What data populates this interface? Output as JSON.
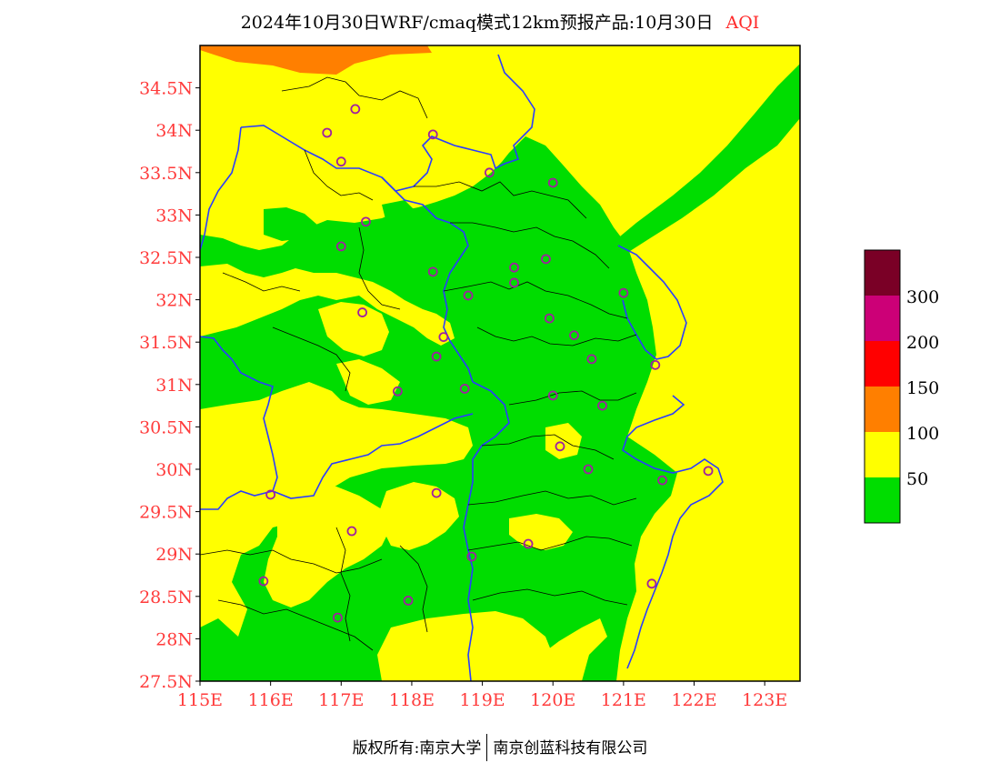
{
  "title": {
    "main": "2024年10月30日WRF/cmaq模式12km预报产品:10月30日",
    "variable": "AQI"
  },
  "footer": {
    "copyright": "版权所有:南京大学",
    "partner": "南京创蓝科技有限公司"
  },
  "axes": {
    "lat_ticks": [
      "34.5N",
      "34N",
      "33.5N",
      "33N",
      "32.5N",
      "32N",
      "31.5N",
      "31N",
      "30.5N",
      "30N",
      "29.5N",
      "29N",
      "28.5N",
      "28N",
      "27.5N"
    ],
    "lon_ticks": [
      "115E",
      "116E",
      "117E",
      "118E",
      "119E",
      "120E",
      "121E",
      "122E",
      "123E"
    ],
    "lat_range": [
      27.5,
      35.0
    ],
    "lon_range": [
      115.0,
      123.5
    ],
    "label_color": "#ff3b3b"
  },
  "legend": {
    "labels": [
      "300",
      "200",
      "150",
      "100",
      "50"
    ],
    "colors": [
      "#00dd00",
      "#ffff00",
      "#ff7f00",
      "#ff0000",
      "#cc0077",
      "#7a0026"
    ]
  },
  "colors": {
    "good": "#00dd00",
    "moderate": "#ffff00",
    "sensitive": "#ff7f00",
    "province_border": "#2a3cff",
    "city_border": "#000000",
    "station_marker": "#a020a0"
  },
  "stations": [
    {
      "lon": 117.2,
      "lat": 34.25
    },
    {
      "lon": 116.8,
      "lat": 33.97
    },
    {
      "lon": 117.0,
      "lat": 33.63
    },
    {
      "lon": 118.3,
      "lat": 33.95
    },
    {
      "lon": 119.1,
      "lat": 33.5
    },
    {
      "lon": 120.0,
      "lat": 33.38
    },
    {
      "lon": 117.35,
      "lat": 32.92
    },
    {
      "lon": 117.0,
      "lat": 32.63
    },
    {
      "lon": 118.3,
      "lat": 32.33
    },
    {
      "lon": 119.9,
      "lat": 32.48
    },
    {
      "lon": 119.45,
      "lat": 32.38
    },
    {
      "lon": 119.45,
      "lat": 32.2
    },
    {
      "lon": 118.8,
      "lat": 32.05
    },
    {
      "lon": 121.0,
      "lat": 32.08
    },
    {
      "lon": 117.3,
      "lat": 31.85
    },
    {
      "lon": 119.95,
      "lat": 31.78
    },
    {
      "lon": 118.45,
      "lat": 31.56
    },
    {
      "lon": 118.35,
      "lat": 31.33
    },
    {
      "lon": 120.3,
      "lat": 31.58
    },
    {
      "lon": 120.55,
      "lat": 31.3
    },
    {
      "lon": 121.45,
      "lat": 31.23
    },
    {
      "lon": 117.8,
      "lat": 30.92
    },
    {
      "lon": 118.75,
      "lat": 30.95
    },
    {
      "lon": 120.0,
      "lat": 30.87
    },
    {
      "lon": 120.7,
      "lat": 30.75
    },
    {
      "lon": 120.1,
      "lat": 30.27
    },
    {
      "lon": 120.5,
      "lat": 30.0
    },
    {
      "lon": 121.55,
      "lat": 29.87
    },
    {
      "lon": 122.2,
      "lat": 29.98
    },
    {
      "lon": 116.0,
      "lat": 29.7
    },
    {
      "lon": 118.35,
      "lat": 29.72
    },
    {
      "lon": 117.15,
      "lat": 29.27
    },
    {
      "lon": 119.65,
      "lat": 29.12
    },
    {
      "lon": 118.85,
      "lat": 28.97
    },
    {
      "lon": 115.9,
      "lat": 28.68
    },
    {
      "lon": 121.4,
      "lat": 28.65
    },
    {
      "lon": 117.95,
      "lat": 28.45
    },
    {
      "lon": 116.95,
      "lat": 28.25
    }
  ]
}
